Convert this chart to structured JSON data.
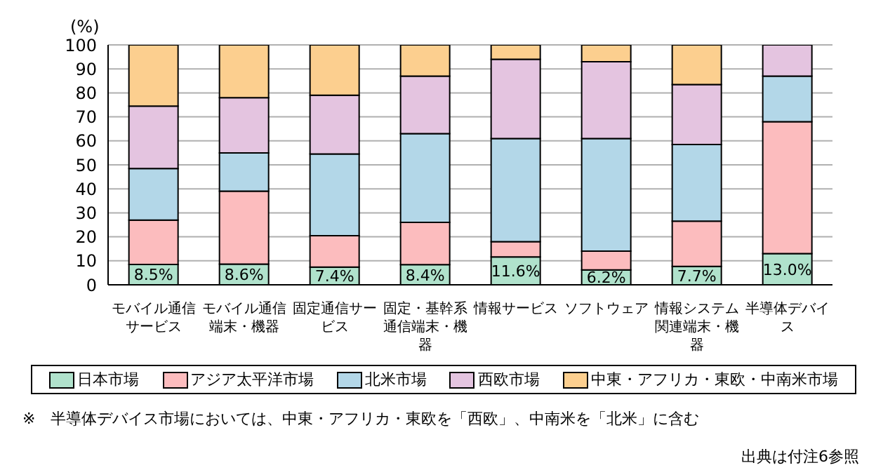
{
  "chart_data": {
    "type": "bar",
    "stacked": true,
    "ylabel": "(%)",
    "categories": [
      "モバイル通信サービス",
      "モバイル通信端末・機器",
      "固定通信サービス",
      "固定・基幹系通信端末・機器",
      "情報サービス",
      "ソフトウェア",
      "情報システム関連端末・機器",
      "半導体デバイス"
    ],
    "series": [
      {
        "name": "日本市場",
        "color": "#b0e2cc",
        "values": [
          8.5,
          8.6,
          7.4,
          8.4,
          11.6,
          6.2,
          7.7,
          13.0
        ],
        "value_labels": [
          "8.5%",
          "8.6%",
          "7.4%",
          "8.4%",
          "11.6%",
          "6.2%",
          "7.7%",
          "13.0%"
        ]
      },
      {
        "name": "アジア太平洋市場",
        "color": "#fcbcbe",
        "values": [
          18.5,
          30.4,
          13.1,
          17.6,
          6.4,
          7.8,
          18.8,
          55
        ]
      },
      {
        "name": "北米市場",
        "color": "#b3d7e8",
        "values": [
          21.5,
          16,
          34,
          37,
          43,
          47,
          32,
          19
        ]
      },
      {
        "name": "西欧市場",
        "color": "#e4c4e0",
        "values": [
          26,
          23,
          24.5,
          24,
          33,
          32,
          25,
          13
        ]
      },
      {
        "name": "中東・アフリカ・東欧・中南米市場",
        "color": "#fccf8f",
        "values": [
          25.5,
          22,
          21,
          13,
          6,
          7,
          16.5,
          0
        ]
      }
    ],
    "ylim": [
      0,
      100
    ],
    "yticks": [
      0,
      10,
      20,
      30,
      40,
      50,
      60,
      70,
      80,
      90,
      100
    ],
    "grid": "y",
    "legend": "bottom",
    "annotations": [
      "※　半導体デバイス市場においては、中東・アフリカ・東欧を「西欧」、中南米を「北米」に含む",
      "出典は付注6参照"
    ]
  }
}
